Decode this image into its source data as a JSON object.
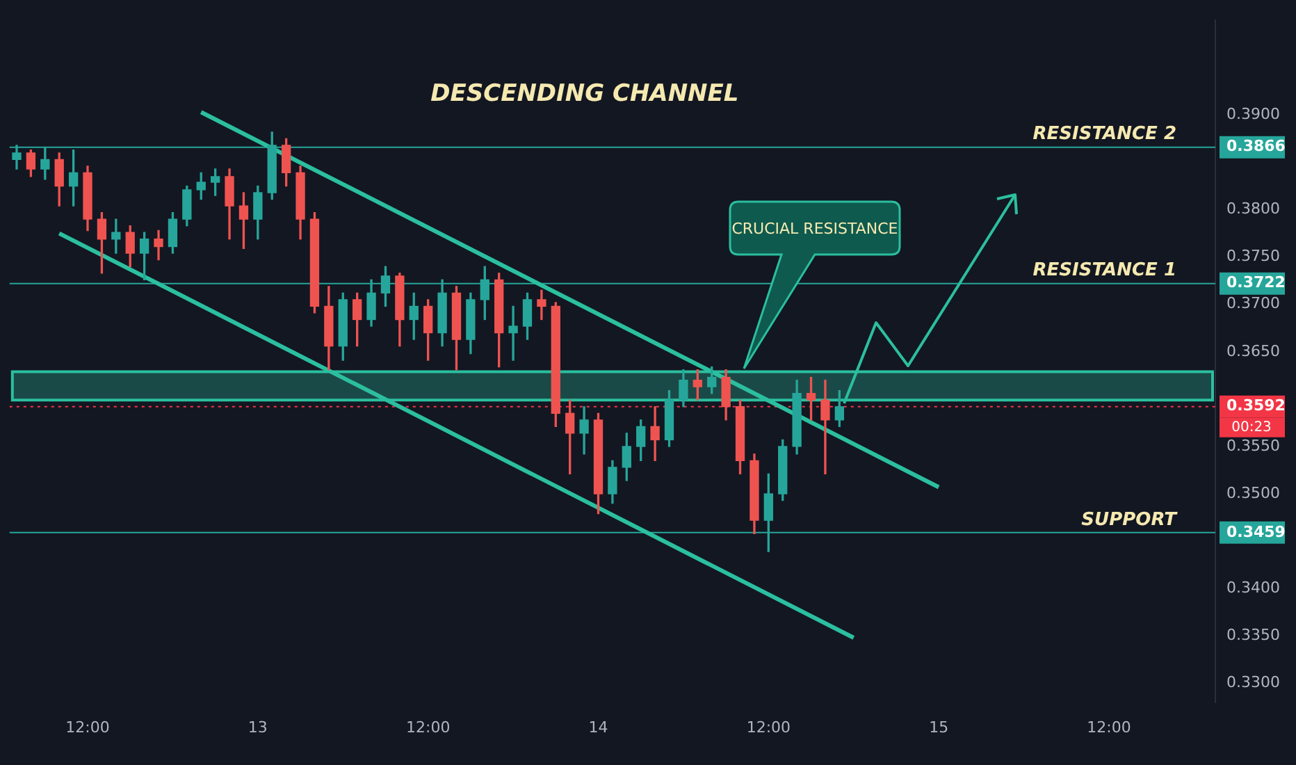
{
  "chart_data": {
    "type": "candlestick",
    "title": "DESCENDING CHANNEL",
    "categories": [
      null,
      null,
      null,
      null,
      null,
      "12:00",
      null,
      null,
      null,
      null,
      null,
      null,
      null,
      null,
      null,
      null,
      null,
      "13",
      null,
      null,
      null,
      null,
      null,
      null,
      null,
      null,
      null,
      null,
      null,
      "12:00",
      null,
      null,
      null,
      null,
      null,
      null,
      null,
      null,
      null,
      null,
      null,
      "14",
      null,
      null,
      null,
      null,
      null,
      null,
      null,
      null,
      null,
      null,
      null,
      "12:00",
      null,
      null,
      null,
      null,
      null,
      null,
      null,
      null,
      null,
      null,
      null,
      "15",
      null,
      null,
      null,
      null,
      null,
      null,
      null,
      null,
      null,
      null,
      null,
      "12:00",
      null,
      null,
      null,
      null,
      null,
      null,
      null
    ],
    "ohlc": [
      [
        0.3853,
        0.3868,
        0.3843,
        0.386
      ],
      [
        0.386,
        0.3863,
        0.3835,
        0.3843
      ],
      [
        0.3843,
        0.3866,
        0.3832,
        0.3853
      ],
      [
        0.3853,
        0.386,
        0.3804,
        0.3825
      ],
      [
        0.3825,
        0.3863,
        0.3804,
        0.3839
      ],
      [
        0.3839,
        0.3846,
        0.3778,
        0.379
      ],
      [
        0.379,
        0.3797,
        0.3733,
        0.3769
      ],
      [
        0.3769,
        0.379,
        0.3754,
        0.3776
      ],
      [
        0.3776,
        0.3783,
        0.374,
        0.3754
      ],
      [
        0.3754,
        0.3776,
        0.3726,
        0.3769
      ],
      [
        0.3769,
        0.3778,
        0.3747,
        0.3761
      ],
      [
        0.3761,
        0.3797,
        0.3754,
        0.379
      ],
      [
        0.379,
        0.3825,
        0.3783,
        0.3821
      ],
      [
        0.3821,
        0.3839,
        0.3811,
        0.3829
      ],
      [
        0.3829,
        0.3843,
        0.3815,
        0.3835
      ],
      [
        0.3835,
        0.3843,
        0.3769,
        0.3804
      ],
      [
        0.3804,
        0.3818,
        0.3759,
        0.379
      ],
      [
        0.379,
        0.3825,
        0.3769,
        0.3818
      ],
      [
        0.3818,
        0.3882,
        0.3811,
        0.3868
      ],
      [
        0.3868,
        0.3875,
        0.3825,
        0.3839
      ],
      [
        0.3839,
        0.3846,
        0.3769,
        0.379
      ],
      [
        0.379,
        0.3797,
        0.3691,
        0.3698
      ],
      [
        0.3698,
        0.3719,
        0.3631,
        0.3656
      ],
      [
        0.3656,
        0.3712,
        0.3641,
        0.3705
      ],
      [
        0.3705,
        0.3712,
        0.3656,
        0.3684
      ],
      [
        0.3684,
        0.3726,
        0.3677,
        0.3712
      ],
      [
        0.3712,
        0.374,
        0.3698,
        0.373
      ],
      [
        0.373,
        0.3733,
        0.3656,
        0.3684
      ],
      [
        0.3684,
        0.3712,
        0.3663,
        0.3698
      ],
      [
        0.3698,
        0.3705,
        0.3641,
        0.367
      ],
      [
        0.367,
        0.3726,
        0.3656,
        0.3712
      ],
      [
        0.3712,
        0.3719,
        0.3631,
        0.3663
      ],
      [
        0.3663,
        0.3712,
        0.3648,
        0.3705
      ],
      [
        0.3705,
        0.374,
        0.3684,
        0.3726
      ],
      [
        0.3726,
        0.3733,
        0.3634,
        0.367
      ],
      [
        0.367,
        0.3698,
        0.3641,
        0.3677
      ],
      [
        0.3677,
        0.3712,
        0.3663,
        0.3705
      ],
      [
        0.3705,
        0.3715,
        0.3684,
        0.3698
      ],
      [
        0.3698,
        0.3702,
        0.3571,
        0.3585
      ],
      [
        0.3585,
        0.3599,
        0.3521,
        0.3564
      ],
      [
        0.3564,
        0.3592,
        0.3542,
        0.3578
      ],
      [
        0.3578,
        0.3585,
        0.3479,
        0.35
      ],
      [
        0.35,
        0.3535,
        0.349,
        0.3528
      ],
      [
        0.3528,
        0.3564,
        0.3514,
        0.355
      ],
      [
        0.355,
        0.3578,
        0.3535,
        0.3571
      ],
      [
        0.3571,
        0.3592,
        0.3535,
        0.3557
      ],
      [
        0.3557,
        0.3609,
        0.355,
        0.3599
      ],
      [
        0.3599,
        0.3631,
        0.3592,
        0.362
      ],
      [
        0.362,
        0.3631,
        0.3599,
        0.3613
      ],
      [
        0.3613,
        0.3634,
        0.3606,
        0.3623
      ],
      [
        0.3623,
        0.3631,
        0.3578,
        0.3592
      ],
      [
        0.3592,
        0.3599,
        0.3521,
        0.3535
      ],
      [
        0.3535,
        0.3542,
        0.3458,
        0.3472
      ],
      [
        0.3472,
        0.3521,
        0.3439,
        0.35
      ],
      [
        0.35,
        0.3557,
        0.3493,
        0.355
      ],
      [
        0.355,
        0.362,
        0.3542,
        0.3606
      ],
      [
        0.3606,
        0.3623,
        0.3578,
        0.3599
      ],
      [
        0.3599,
        0.362,
        0.3521,
        0.3578
      ],
      [
        0.3578,
        0.3609,
        0.3571,
        0.3592
      ],
      null,
      null,
      null,
      null,
      null,
      null,
      null,
      null,
      null,
      null,
      null,
      null,
      null,
      null,
      null,
      null,
      null,
      null,
      null,
      null,
      null,
      null,
      null,
      null,
      null,
      null
    ],
    "ylim": [
      0.328,
      0.4
    ],
    "yticks": [
      {
        "value": 0.33,
        "label": "0.3300"
      },
      {
        "value": 0.335,
        "label": "0.3350"
      },
      {
        "value": 0.34,
        "label": "0.3400"
      },
      {
        "value": 0.3459,
        "label": "0.3459"
      },
      {
        "value": 0.35,
        "label": "0.3500"
      },
      {
        "value": 0.355,
        "label": "0.3550"
      },
      {
        "value": 0.3592,
        "label": "0.3592"
      },
      {
        "value": 0.365,
        "label": "0.3650"
      },
      {
        "value": 0.37,
        "label": "0.3700"
      },
      {
        "value": 0.3722,
        "label": "0.3722"
      },
      {
        "value": 0.375,
        "label": "0.3750"
      },
      {
        "value": 0.38,
        "label": "0.3800"
      },
      {
        "value": 0.3866,
        "label": "0.3866"
      },
      {
        "value": 0.39,
        "label": "0.3900"
      }
    ],
    "series": [
      {
        "type": "line",
        "color": "#2bbf9f",
        "values": [
          null,
          null,
          null,
          null,
          null,
          null,
          null,
          null,
          null,
          null,
          null,
          null,
          null,
          0.3903,
          null,
          null,
          null,
          null,
          null,
          null,
          null,
          null,
          null,
          null,
          null,
          null,
          null,
          null,
          null,
          null,
          null,
          null,
          null,
          null,
          null,
          null,
          null,
          null,
          null,
          null,
          null,
          null,
          null,
          null,
          null,
          null,
          null,
          null,
          null,
          null,
          null,
          null,
          null,
          null,
          null,
          null,
          null,
          null,
          null,
          null,
          null,
          null,
          null,
          null,
          null,
          0.3507,
          null,
          null,
          null,
          null,
          null,
          null,
          null,
          null,
          null,
          null,
          null,
          null,
          null,
          null,
          null,
          null,
          null,
          null,
          null
        ]
      },
      {
        "type": "line",
        "color": "#2bbf9f",
        "values": [
          null,
          null,
          null,
          0.3775,
          null,
          null,
          null,
          null,
          null,
          null,
          null,
          null,
          null,
          null,
          null,
          null,
          null,
          null,
          null,
          null,
          null,
          null,
          null,
          null,
          null,
          null,
          null,
          null,
          null,
          null,
          null,
          null,
          null,
          null,
          null,
          null,
          null,
          null,
          null,
          null,
          null,
          null,
          null,
          null,
          null,
          null,
          null,
          null,
          null,
          null,
          null,
          null,
          null,
          null,
          null,
          null,
          null,
          null,
          null,
          0.3348,
          null,
          null,
          null,
          null,
          null,
          null,
          null,
          null,
          null,
          null,
          null,
          null,
          null,
          null,
          null,
          null,
          null,
          null,
          null,
          null,
          null,
          null,
          null,
          null,
          null
        ]
      }
    ],
    "ref_lines": [
      {
        "axis": "y",
        "value": 0.3866,
        "label": "RESISTANCE 2",
        "color": "#26a69a"
      },
      {
        "axis": "y",
        "value": 0.3722,
        "label": "RESISTANCE 1",
        "color": "#26a69a"
      },
      {
        "axis": "y",
        "value": 0.3459,
        "label": "SUPPORT",
        "color": "#26a69a"
      },
      {
        "axis": "y",
        "value": 0.3592,
        "label": null,
        "color": "#f23645",
        "line_style": "dotted"
      }
    ],
    "bands": [
      {
        "axis": "y",
        "from": 0.3599,
        "to": 0.3629,
        "color": "#2bbf9f"
      }
    ],
    "annotations": [
      "CRUCIAL RESISTANCE",
      "00:23"
    ],
    "grid": false,
    "legend": false
  }
}
